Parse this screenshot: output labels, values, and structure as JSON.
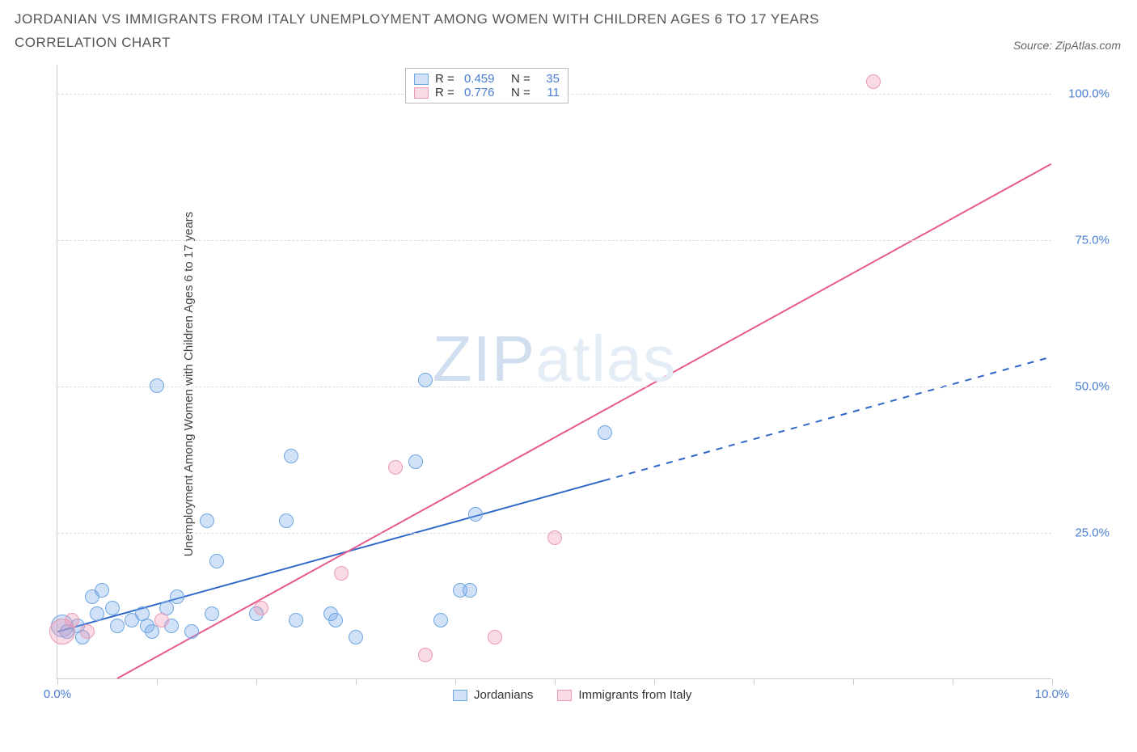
{
  "title": "JORDANIAN VS IMMIGRANTS FROM ITALY UNEMPLOYMENT AMONG WOMEN WITH CHILDREN AGES 6 TO 17 YEARS CORRELATION CHART",
  "source": "Source: ZipAtlas.com",
  "watermark_a": "ZIP",
  "watermark_b": "atlas",
  "chart": {
    "type": "scatter",
    "y_label": "Unemployment Among Women with Children Ages 6 to 17 years",
    "xlim": [
      0,
      10
    ],
    "ylim": [
      0,
      105
    ],
    "x_tick_labels": {
      "0": "0.0%",
      "10": "10.0%"
    },
    "x_minor_ticks": [
      1,
      2,
      3,
      4,
      5,
      6,
      7,
      8,
      9
    ],
    "y_ticks": [
      25,
      50,
      75,
      100
    ],
    "y_tick_labels": {
      "25": "25.0%",
      "50": "50.0%",
      "75": "75.0%",
      "100": "100.0%"
    },
    "grid_color": "#dddddd",
    "axis_color": "#cccccc",
    "background_color": "#ffffff",
    "label_color": "#4a7dd4",
    "series": [
      {
        "name": "Jordanians",
        "color_fill": "rgba(120,170,235,0.35)",
        "color_stroke": "#6fa6e0",
        "marker_radius": 9,
        "R": "0.459",
        "N": "35",
        "trend": {
          "x1": 0,
          "y1": 8,
          "x2": 10,
          "y2": 55,
          "x_solid_end": 5.5,
          "stroke": "#2e66c9",
          "width": 2
        },
        "points": [
          {
            "x": 0.05,
            "y": 9,
            "r": 14
          },
          {
            "x": 0.1,
            "y": 8
          },
          {
            "x": 0.2,
            "y": 9
          },
          {
            "x": 0.25,
            "y": 7
          },
          {
            "x": 0.35,
            "y": 14
          },
          {
            "x": 0.4,
            "y": 11
          },
          {
            "x": 0.45,
            "y": 15
          },
          {
            "x": 0.55,
            "y": 12
          },
          {
            "x": 0.6,
            "y": 9
          },
          {
            "x": 0.75,
            "y": 10
          },
          {
            "x": 0.85,
            "y": 11
          },
          {
            "x": 0.9,
            "y": 9
          },
          {
            "x": 0.95,
            "y": 8
          },
          {
            "x": 1.0,
            "y": 50
          },
          {
            "x": 1.1,
            "y": 12
          },
          {
            "x": 1.15,
            "y": 9
          },
          {
            "x": 1.2,
            "y": 14
          },
          {
            "x": 1.35,
            "y": 8
          },
          {
            "x": 1.5,
            "y": 27
          },
          {
            "x": 1.55,
            "y": 11
          },
          {
            "x": 1.6,
            "y": 20
          },
          {
            "x": 2.0,
            "y": 11
          },
          {
            "x": 2.3,
            "y": 27
          },
          {
            "x": 2.35,
            "y": 38
          },
          {
            "x": 2.4,
            "y": 10
          },
          {
            "x": 2.75,
            "y": 11
          },
          {
            "x": 2.8,
            "y": 10
          },
          {
            "x": 3.0,
            "y": 7
          },
          {
            "x": 3.6,
            "y": 37
          },
          {
            "x": 3.7,
            "y": 51
          },
          {
            "x": 3.85,
            "y": 10
          },
          {
            "x": 4.05,
            "y": 15
          },
          {
            "x": 4.15,
            "y": 15
          },
          {
            "x": 4.2,
            "y": 28
          },
          {
            "x": 5.5,
            "y": 42
          }
        ]
      },
      {
        "name": "Immigrants from Italy",
        "color_fill": "rgba(240,150,180,0.35)",
        "color_stroke": "#e99ab5",
        "marker_radius": 9,
        "R": "0.776",
        "N": "11",
        "trend": {
          "x1": 0.6,
          "y1": 0,
          "x2": 10,
          "y2": 88,
          "x_solid_end": 10,
          "stroke": "#e65a8f",
          "width": 2
        },
        "points": [
          {
            "x": 0.05,
            "y": 8,
            "r": 16
          },
          {
            "x": 0.15,
            "y": 10
          },
          {
            "x": 0.3,
            "y": 8
          },
          {
            "x": 1.05,
            "y": 10
          },
          {
            "x": 2.05,
            "y": 12
          },
          {
            "x": 2.85,
            "y": 18
          },
          {
            "x": 3.4,
            "y": 36
          },
          {
            "x": 3.7,
            "y": 4
          },
          {
            "x": 4.4,
            "y": 7
          },
          {
            "x": 5.0,
            "y": 24
          },
          {
            "x": 8.2,
            "y": 102
          }
        ]
      }
    ],
    "legend_bottom": [
      {
        "label": "Jordanians",
        "fill": "rgba(120,170,235,0.35)",
        "stroke": "#6fa6e0"
      },
      {
        "label": "Immigrants from Italy",
        "fill": "rgba(240,150,180,0.35)",
        "stroke": "#e99ab5"
      }
    ]
  }
}
